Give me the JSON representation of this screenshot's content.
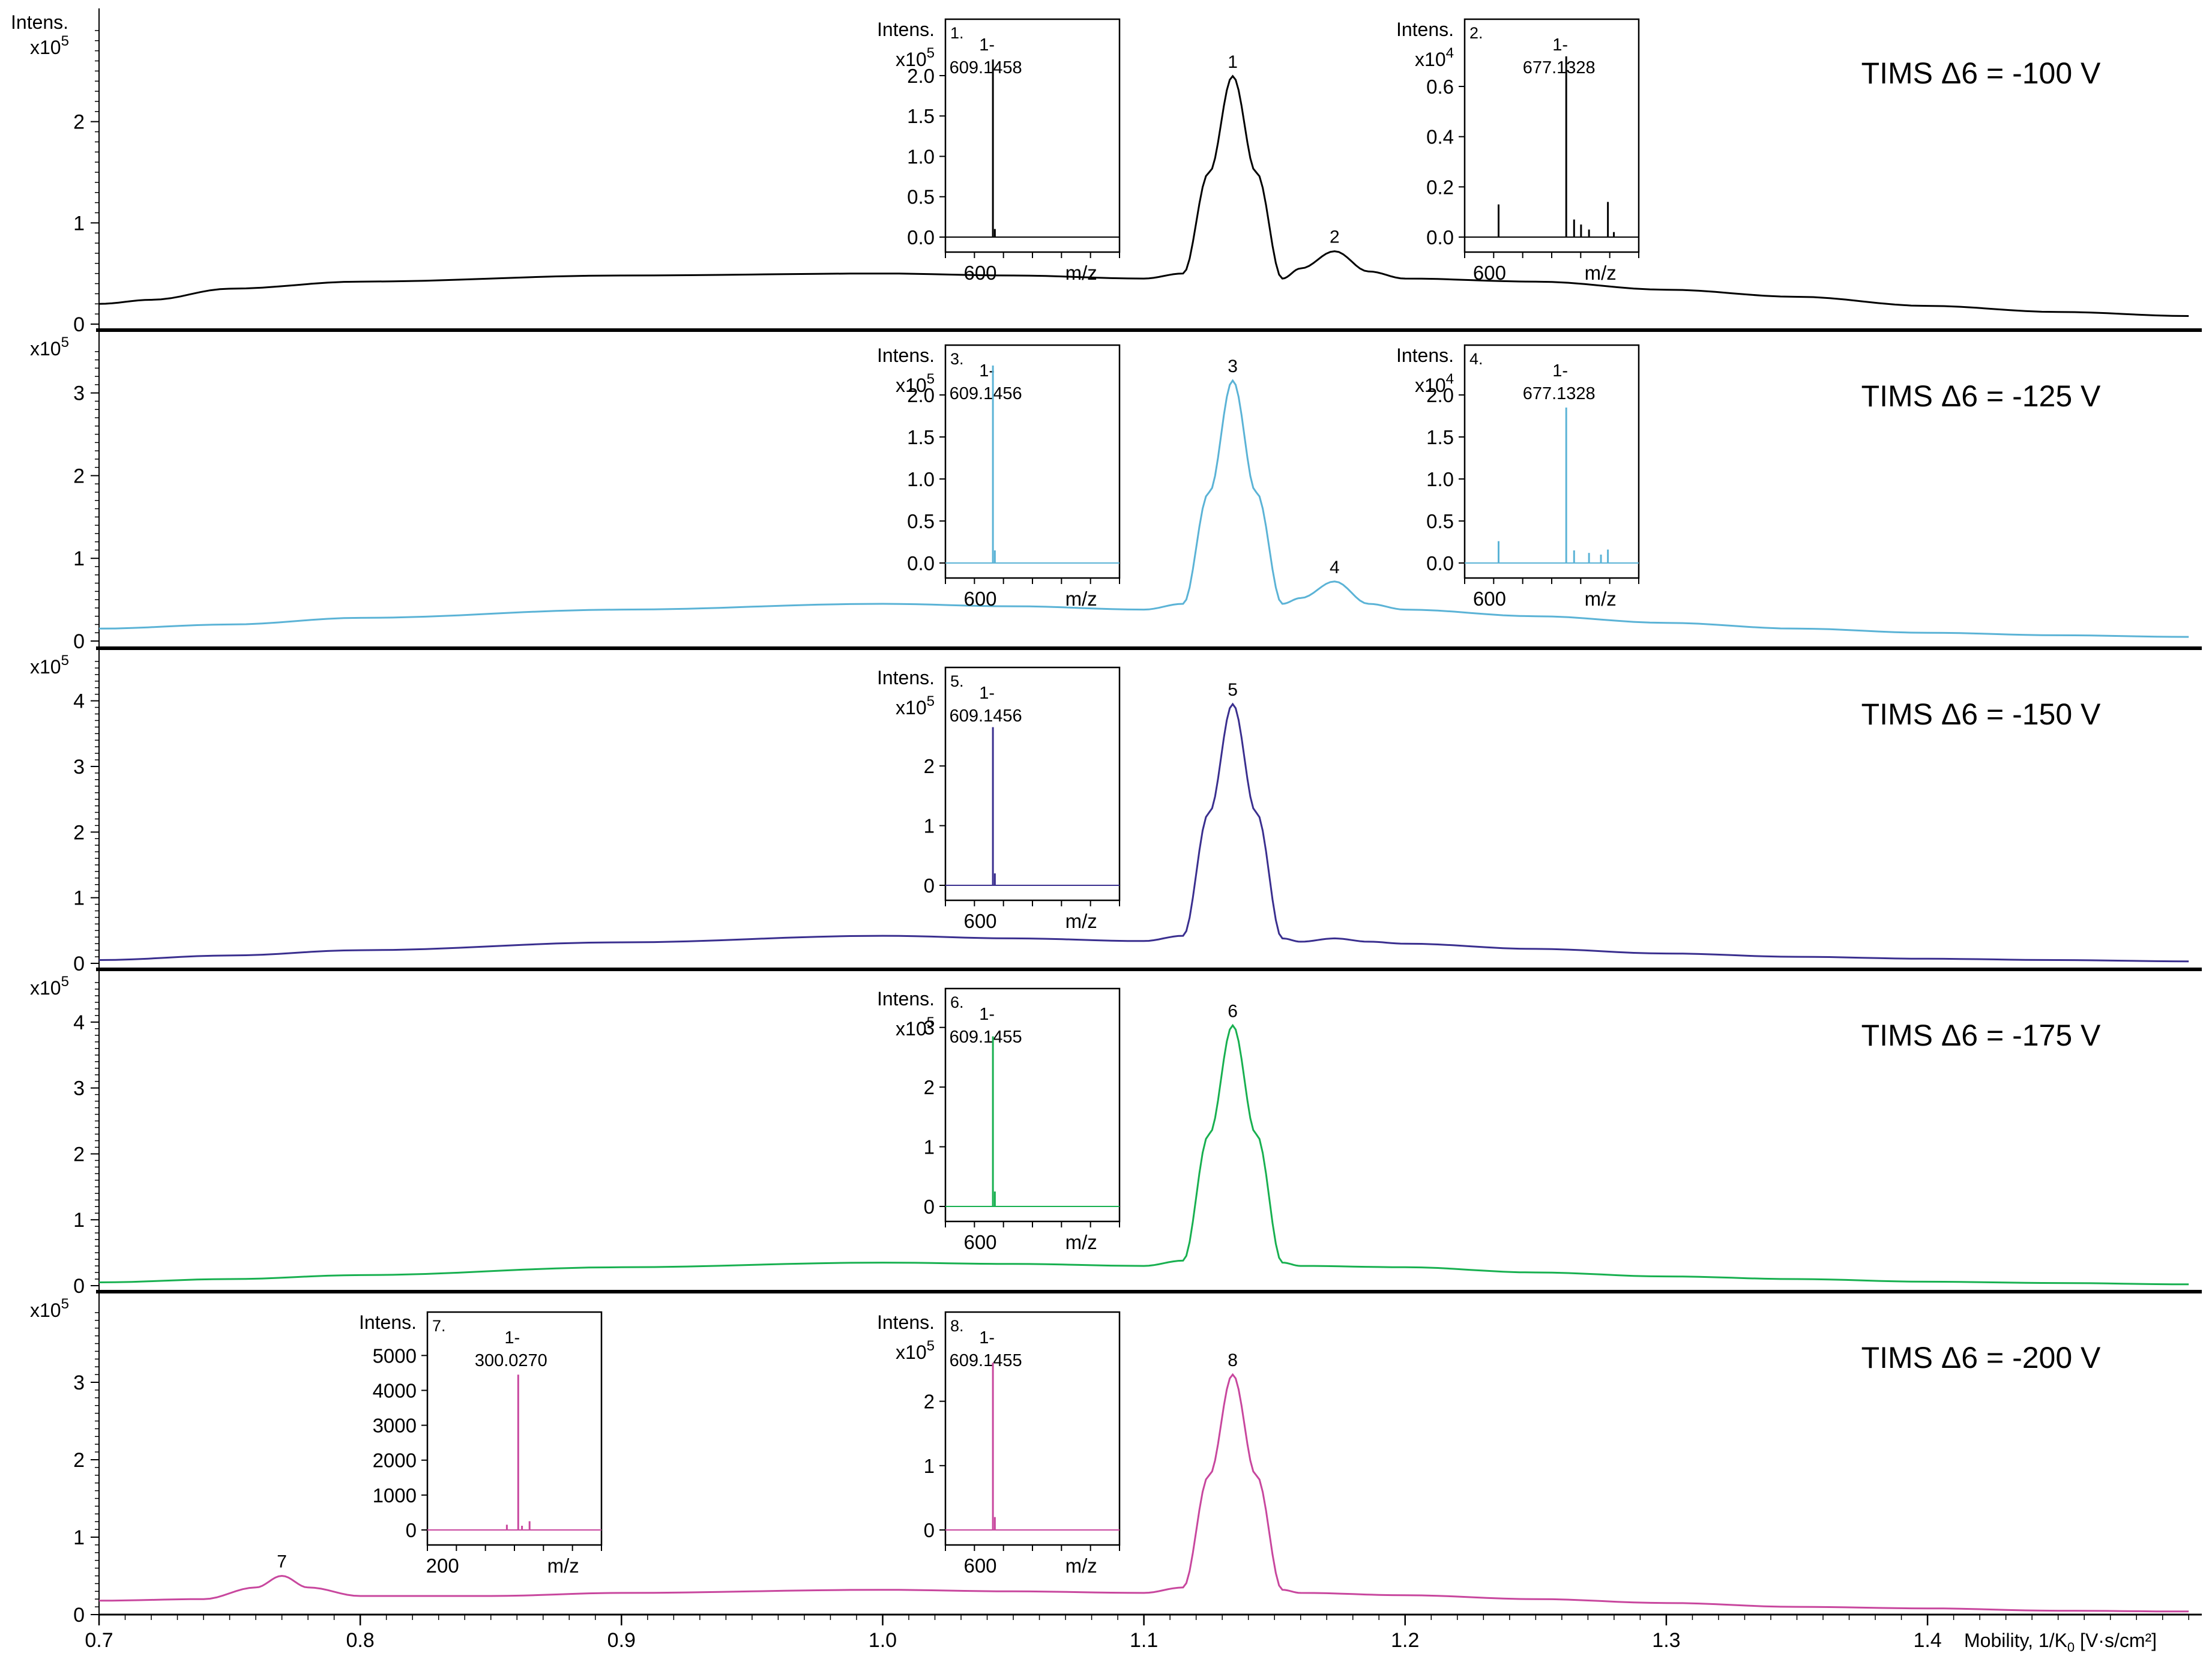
{
  "x_axis": {
    "label": "Mobility, 1/K",
    "label_sub": "0",
    "label_unit": " [V·s/cm²]",
    "range": [
      0.7,
      1.505
    ],
    "ticks": [
      "0.7",
      "0.8",
      "0.9",
      "1.0",
      "1.1",
      "1.2",
      "1.3",
      "1.4"
    ],
    "tick_values": [
      0.7,
      0.8,
      0.9,
      1.0,
      1.1,
      1.2,
      1.3,
      1.4
    ]
  },
  "y_axis_label": "Intens.",
  "colors": {
    "panel1": "#000000",
    "panel2": "#5bb3d6",
    "panel3": "#3a2f8f",
    "panel4": "#18b050",
    "panel5": "#c8479e"
  },
  "chart_data": [
    {
      "type": "line",
      "title": "TIMS Δ6 = -100 V",
      "y_multiplier": "x10",
      "y_multiplier_exp": "5",
      "y_ticks": [
        "0",
        "1",
        "2"
      ],
      "ylim": [
        0,
        3.0
      ],
      "series": [
        {
          "x": [
            0.7,
            0.72,
            0.75,
            0.8,
            0.9,
            1.0,
            1.05,
            1.1,
            1.115,
            1.125,
            1.134,
            1.143,
            1.153,
            1.16,
            1.173,
            1.186,
            1.2,
            1.25,
            1.3,
            1.35,
            1.4,
            1.45,
            1.5
          ],
          "values": [
            0.2,
            0.24,
            0.35,
            0.42,
            0.48,
            0.5,
            0.48,
            0.45,
            0.5,
            1.5,
            2.45,
            1.5,
            0.45,
            0.55,
            0.72,
            0.52,
            0.45,
            0.42,
            0.34,
            0.27,
            0.18,
            0.12,
            0.08
          ]
        }
      ],
      "peaks": [
        {
          "label": "1",
          "x": 1.134,
          "y": 2.45
        },
        {
          "label": "2",
          "x": 1.173,
          "y": 0.72
        }
      ],
      "insets": [
        {
          "number": "1.",
          "multiplier": "x10",
          "multiplier_exp": "5",
          "peak_label": "1-",
          "peak_mz": "609.1458",
          "y_ticks": [
            "0.0",
            "0.5",
            "1.0",
            "1.5",
            "2.0"
          ],
          "tick_values": [
            0,
            0.5,
            1.0,
            1.5,
            2.0
          ],
          "ylim": [
            0,
            2.55
          ],
          "x_tick": "600",
          "x_tick_value": 600,
          "xlim": [
            575,
            700
          ],
          "xlabel": "m/z",
          "peaks": [
            [
              609.1,
              2.2
            ],
            [
              610.5,
              0.1
            ]
          ]
        },
        {
          "number": "2.",
          "multiplier": "x10",
          "multiplier_exp": "4",
          "peak_label": "1-",
          "peak_mz": "677.1328",
          "y_ticks": [
            "0.0",
            "0.2",
            "0.4",
            "0.6"
          ],
          "tick_values": [
            0,
            0.2,
            0.4,
            0.6
          ],
          "ylim": [
            0,
            0.82
          ],
          "x_tick": "600",
          "x_tick_value": 600,
          "xlim": [
            575,
            750
          ],
          "xlabel": "m/z",
          "peaks": [
            [
              609.1,
              0.13
            ],
            [
              677.1,
              0.72
            ],
            [
              685,
              0.07
            ],
            [
              692,
              0.05
            ],
            [
              700,
              0.03
            ],
            [
              719,
              0.14
            ],
            [
              725,
              0.02
            ]
          ]
        }
      ]
    },
    {
      "type": "line",
      "title": "TIMS Δ6 = -125 V",
      "y_multiplier": "x10",
      "y_multiplier_exp": "5",
      "y_ticks": [
        "0",
        "1",
        "2",
        "3"
      ],
      "ylim": [
        0,
        3.6
      ],
      "series": [
        {
          "x": [
            0.7,
            0.75,
            0.8,
            0.9,
            1.0,
            1.05,
            1.1,
            1.115,
            1.125,
            1.134,
            1.143,
            1.153,
            1.16,
            1.173,
            1.186,
            1.2,
            1.25,
            1.3,
            1.35,
            1.4,
            1.45,
            1.5
          ],
          "values": [
            0.15,
            0.2,
            0.28,
            0.38,
            0.45,
            0.42,
            0.38,
            0.45,
            1.8,
            3.15,
            1.8,
            0.45,
            0.52,
            0.72,
            0.45,
            0.38,
            0.3,
            0.22,
            0.15,
            0.1,
            0.07,
            0.05
          ]
        }
      ],
      "peaks": [
        {
          "label": "3",
          "x": 1.134,
          "y": 3.15
        },
        {
          "label": "4",
          "x": 1.173,
          "y": 0.72
        }
      ],
      "insets": [
        {
          "number": "3.",
          "multiplier": "x10",
          "multiplier_exp": "5",
          "peak_label": "1-",
          "peak_mz": "609.1456",
          "y_ticks": [
            "0.0",
            "0.5",
            "1.0",
            "1.5",
            "2.0"
          ],
          "tick_values": [
            0,
            0.5,
            1.0,
            1.5,
            2.0
          ],
          "ylim": [
            0,
            2.45
          ],
          "x_tick": "600",
          "x_tick_value": 600,
          "xlim": [
            575,
            700
          ],
          "xlabel": "m/z",
          "peaks": [
            [
              609.1,
              2.35
            ],
            [
              610.5,
              0.15
            ]
          ]
        },
        {
          "number": "4.",
          "multiplier": "x10",
          "multiplier_exp": "4",
          "peak_label": "1-",
          "peak_mz": "677.1328",
          "y_ticks": [
            "0.0",
            "0.5",
            "1.0",
            "1.5",
            "2.0"
          ],
          "tick_values": [
            0,
            0.5,
            1.0,
            1.5,
            2.0
          ],
          "ylim": [
            0,
            2.45
          ],
          "x_tick": "600",
          "x_tick_value": 600,
          "xlim": [
            575,
            750
          ],
          "xlabel": "m/z",
          "peaks": [
            [
              609.1,
              0.26
            ],
            [
              677.1,
              1.85
            ],
            [
              685,
              0.15
            ],
            [
              700,
              0.12
            ],
            [
              712,
              0.1
            ],
            [
              719,
              0.16
            ]
          ]
        }
      ]
    },
    {
      "type": "line",
      "title": "TIMS Δ6 = -150 V",
      "y_multiplier": "x10",
      "y_multiplier_exp": "5",
      "y_ticks": [
        "0",
        "1",
        "2",
        "3",
        "4"
      ],
      "ylim": [
        0,
        4.6
      ],
      "series": [
        {
          "x": [
            0.7,
            0.75,
            0.8,
            0.9,
            1.0,
            1.05,
            1.1,
            1.115,
            1.125,
            1.134,
            1.143,
            1.153,
            1.16,
            1.173,
            1.186,
            1.2,
            1.25,
            1.3,
            1.35,
            1.4,
            1.45,
            1.5
          ],
          "values": [
            0.05,
            0.12,
            0.2,
            0.32,
            0.42,
            0.38,
            0.34,
            0.42,
            2.3,
            3.95,
            2.3,
            0.38,
            0.33,
            0.38,
            0.33,
            0.3,
            0.22,
            0.15,
            0.1,
            0.07,
            0.05,
            0.03
          ]
        }
      ],
      "peaks": [
        {
          "label": "5",
          "x": 1.134,
          "y": 3.95
        }
      ],
      "insets": [
        {
          "number": "5.",
          "multiplier": "x10",
          "multiplier_exp": "5",
          "peak_label": "1-",
          "peak_mz": "609.1456",
          "y_ticks": [
            "0",
            "1",
            "2"
          ],
          "tick_values": [
            0,
            1,
            2
          ],
          "ylim": [
            0,
            3.45
          ],
          "x_tick": "600",
          "x_tick_value": 600,
          "xlim": [
            575,
            700
          ],
          "xlabel": "m/z",
          "peaks": [
            [
              609.1,
              2.65
            ],
            [
              610.5,
              0.2
            ]
          ]
        }
      ]
    },
    {
      "type": "line",
      "title": "TIMS Δ6 = -175 V",
      "y_multiplier": "x10",
      "y_multiplier_exp": "5",
      "y_ticks": [
        "0",
        "1",
        "2",
        "3",
        "4"
      ],
      "ylim": [
        0,
        4.6
      ],
      "series": [
        {
          "x": [
            0.7,
            0.75,
            0.8,
            0.9,
            1.0,
            1.05,
            1.1,
            1.115,
            1.125,
            1.134,
            1.143,
            1.153,
            1.16,
            1.2,
            1.25,
            1.3,
            1.35,
            1.4,
            1.45,
            1.5
          ],
          "values": [
            0.05,
            0.1,
            0.16,
            0.28,
            0.35,
            0.33,
            0.3,
            0.38,
            2.3,
            3.95,
            2.3,
            0.35,
            0.3,
            0.28,
            0.2,
            0.14,
            0.1,
            0.06,
            0.04,
            0.02
          ]
        }
      ],
      "peaks": [
        {
          "label": "6",
          "x": 1.134,
          "y": 3.95
        }
      ],
      "insets": [
        {
          "number": "6.",
          "multiplier": "x10",
          "multiplier_exp": "5",
          "peak_label": "1-",
          "peak_mz": "609.1455",
          "y_ticks": [
            "0",
            "1",
            "2",
            "3"
          ],
          "tick_values": [
            0,
            1,
            2,
            3
          ],
          "ylim": [
            0,
            3.45
          ],
          "x_tick": "600",
          "x_tick_value": 600,
          "xlim": [
            575,
            700
          ],
          "xlabel": "m/z",
          "peaks": [
            [
              609.1,
              2.85
            ],
            [
              610.5,
              0.25
            ]
          ]
        }
      ]
    },
    {
      "type": "line",
      "title": "TIMS Δ6 = -200 V",
      "y_multiplier": "x10",
      "y_multiplier_exp": "5",
      "y_ticks": [
        "0",
        "1",
        "2",
        "3"
      ],
      "ylim": [
        0,
        4.0
      ],
      "series": [
        {
          "x": [
            0.7,
            0.74,
            0.76,
            0.77,
            0.78,
            0.8,
            0.85,
            0.9,
            1.0,
            1.05,
            1.1,
            1.115,
            1.125,
            1.134,
            1.143,
            1.153,
            1.16,
            1.2,
            1.25,
            1.3,
            1.35,
            1.4,
            1.45,
            1.5
          ],
          "values": [
            0.18,
            0.2,
            0.35,
            0.5,
            0.35,
            0.24,
            0.24,
            0.28,
            0.32,
            0.3,
            0.28,
            0.35,
            1.8,
            3.1,
            1.8,
            0.32,
            0.28,
            0.25,
            0.2,
            0.15,
            0.1,
            0.08,
            0.05,
            0.04
          ]
        }
      ],
      "peaks": [
        {
          "label": "7",
          "x": 0.77,
          "y": 0.5
        },
        {
          "label": "8",
          "x": 1.134,
          "y": 3.1
        }
      ],
      "insets": [
        {
          "number": "7.",
          "multiplier": "",
          "multiplier_exp": "",
          "peak_label": "1-",
          "peak_mz": "300.0270",
          "y_ticks": [
            "0",
            "1000",
            "2000",
            "3000",
            "4000",
            "5000"
          ],
          "tick_values": [
            0,
            1000,
            2000,
            3000,
            4000,
            5000
          ],
          "ylim": [
            0,
            5900
          ],
          "x_tick": "200",
          "x_tick_value": 200,
          "xlim": [
            180,
            410
          ],
          "xlabel": "m/z",
          "peaks": [
            [
              285,
              150
            ],
            [
              300,
              4450
            ],
            [
              305,
              120
            ],
            [
              315,
              250
            ]
          ]
        },
        {
          "number": "8.",
          "multiplier": "x10",
          "multiplier_exp": "5",
          "peak_label": "1-",
          "peak_mz": "609.1455",
          "y_ticks": [
            "0",
            "1",
            "2"
          ],
          "tick_values": [
            0,
            1,
            2
          ],
          "ylim": [
            0,
            3.2
          ],
          "x_tick": "600",
          "x_tick_value": 600,
          "xlim": [
            575,
            700
          ],
          "xlabel": "m/z",
          "peaks": [
            [
              609.1,
              2.6
            ],
            [
              610.5,
              0.2
            ]
          ]
        }
      ]
    }
  ]
}
